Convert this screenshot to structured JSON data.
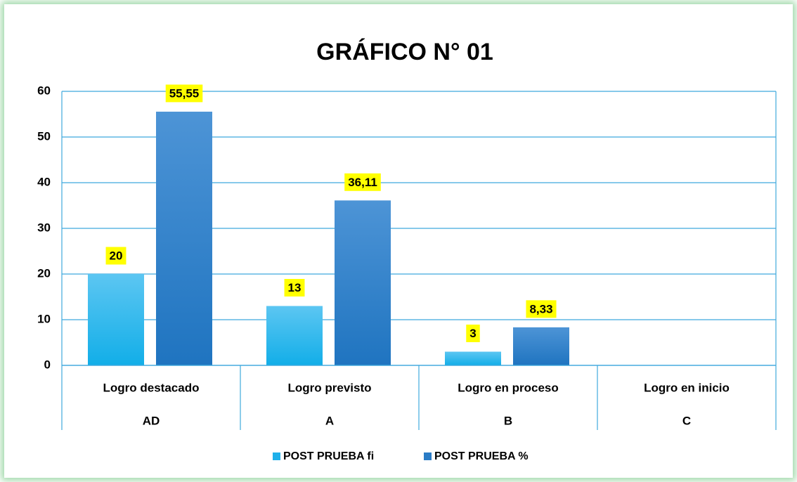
{
  "chart_data": {
    "type": "bar",
    "title": "GRÁFICO N° 01",
    "categories": [
      "Logro destacado",
      "Logro previsto",
      "Logro en proceso",
      "Logro en inicio"
    ],
    "category_codes": [
      "AD",
      "A",
      "B",
      "C"
    ],
    "series": [
      {
        "name": "POST PRUEBA fi",
        "color": "#1fb0ea",
        "values": [
          20,
          13,
          3,
          null
        ]
      },
      {
        "name": "POST PRUEBA %",
        "color": "#2a7cc6",
        "values": [
          55.55,
          36.11,
          8.33,
          null
        ],
        "value_labels": [
          "55,55",
          "36,11",
          "8,33",
          null
        ]
      }
    ],
    "ylim": [
      0,
      60
    ],
    "yticks": [
      0,
      10,
      20,
      30,
      40,
      50,
      60
    ],
    "grid": true,
    "legend": "bottom"
  }
}
